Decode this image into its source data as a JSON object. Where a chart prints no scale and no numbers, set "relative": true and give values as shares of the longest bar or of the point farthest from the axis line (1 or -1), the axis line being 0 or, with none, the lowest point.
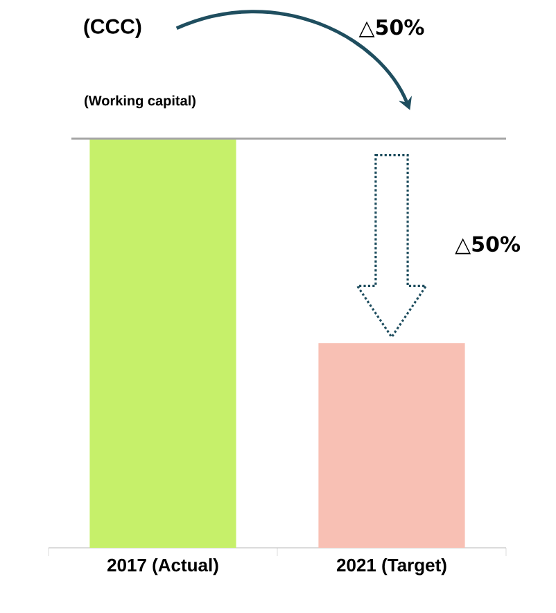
{
  "chart_data": {
    "type": "bar",
    "relative": true,
    "categories": [
      "2017 (Actual)",
      "2021 (Target)"
    ],
    "values": [
      1,
      0.5
    ],
    "colors": [
      "#c6f06a",
      "#f8c0b4"
    ],
    "ref_lines": [
      {
        "axis": "y",
        "value": 1,
        "color": "#a6a6a6"
      }
    ],
    "annotations": [
      "(CCC)",
      "(Working capital)",
      "△50%",
      "△50%"
    ]
  }
}
